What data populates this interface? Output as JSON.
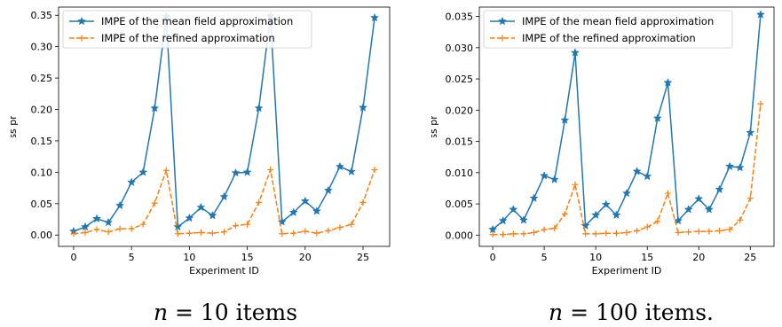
{
  "colors": {
    "mean_field": "#1f77b4",
    "refined": "#ff7f0e"
  },
  "chart_data": [
    {
      "type": "line",
      "xlabel": "Experiment ID",
      "ylabel": "IMPE (Item miss probability error",
      "caption": "n = 10 items",
      "caption_var": "n",
      "caption_rest": " = 10 items",
      "xlim": [
        -1.3,
        27.3
      ],
      "ylim": [
        -0.018,
        0.363
      ],
      "xticks": [
        0,
        5,
        10,
        15,
        20,
        25
      ],
      "xtick_labels": [
        "0",
        "5",
        "10",
        "15",
        "20",
        "25"
      ],
      "yticks": [
        0.0,
        0.05,
        0.1,
        0.15,
        0.2,
        0.25,
        0.3,
        0.35
      ],
      "ytick_labels": [
        "0.00",
        "0.05",
        "0.10",
        "0.15",
        "0.20",
        "0.25",
        "0.30",
        "0.35"
      ],
      "grid": false,
      "legend": "top-left",
      "x": [
        0,
        1,
        2,
        3,
        4,
        5,
        6,
        7,
        8,
        9,
        10,
        11,
        12,
        13,
        14,
        15,
        16,
        17,
        18,
        19,
        20,
        21,
        22,
        23,
        24,
        25,
        26
      ],
      "series": [
        {
          "name": "IMPE of the mean field approximation",
          "marker": "star",
          "style": "solid",
          "values": [
            0.006,
            0.013,
            0.026,
            0.02,
            0.047,
            0.084,
            0.1,
            0.202,
            0.348,
            0.013,
            0.027,
            0.044,
            0.031,
            0.061,
            0.099,
            0.1,
            0.202,
            0.349,
            0.021,
            0.036,
            0.054,
            0.038,
            0.071,
            0.109,
            0.101,
            0.203,
            0.346
          ]
        },
        {
          "name": "IMPE of the refined approximation",
          "marker": "plus",
          "style": "dashed",
          "values": [
            0.002,
            0.004,
            0.009,
            0.005,
            0.01,
            0.01,
            0.017,
            0.051,
            0.103,
            0.002,
            0.003,
            0.004,
            0.003,
            0.005,
            0.015,
            0.017,
            0.052,
            0.104,
            0.002,
            0.003,
            0.006,
            0.003,
            0.007,
            0.012,
            0.017,
            0.052,
            0.104
          ]
        }
      ]
    },
    {
      "type": "line",
      "xlabel": "Experiment ID",
      "ylabel": "IMPE (Item miss probability error",
      "caption": "n = 100 items.",
      "caption_var": "n",
      "caption_rest": " = 100 items.",
      "xlim": [
        -1.3,
        27.3
      ],
      "ylim": [
        -0.0018,
        0.0365
      ],
      "xticks": [
        0,
        5,
        10,
        15,
        20,
        25
      ],
      "xtick_labels": [
        "0",
        "5",
        "10",
        "15",
        "20",
        "25"
      ],
      "yticks": [
        0.0,
        0.005,
        0.01,
        0.015,
        0.02,
        0.025,
        0.03,
        0.035
      ],
      "ytick_labels": [
        "0.000",
        "0.005",
        "0.010",
        "0.015",
        "0.020",
        "0.025",
        "0.030",
        "0.035"
      ],
      "grid": false,
      "legend": "top-left",
      "x": [
        0,
        1,
        2,
        3,
        4,
        5,
        6,
        7,
        8,
        9,
        10,
        11,
        12,
        13,
        14,
        15,
        16,
        17,
        18,
        19,
        20,
        21,
        22,
        23,
        24,
        25,
        26
      ],
      "series": [
        {
          "name": "IMPE of the mean field approximation",
          "marker": "star",
          "style": "solid",
          "values": [
            0.0009,
            0.0023,
            0.0041,
            0.0024,
            0.0059,
            0.0095,
            0.0089,
            0.0184,
            0.0292,
            0.0015,
            0.0032,
            0.0049,
            0.0032,
            0.0067,
            0.0102,
            0.0094,
            0.0187,
            0.0244,
            0.0023,
            0.0041,
            0.0058,
            0.0041,
            0.0073,
            0.011,
            0.0108,
            0.0164,
            0.0353
          ]
        },
        {
          "name": "IMPE of the refined approximation",
          "marker": "plus",
          "style": "dashed",
          "values": [
            0.0001,
            0.0001,
            0.0002,
            0.0002,
            0.0004,
            0.0009,
            0.0011,
            0.0034,
            0.0081,
            0.0002,
            0.0002,
            0.0003,
            0.0003,
            0.0004,
            0.0007,
            0.0013,
            0.0022,
            0.0067,
            0.0004,
            0.0005,
            0.0006,
            0.0006,
            0.0007,
            0.0009,
            0.0024,
            0.0059,
            0.021
          ]
        }
      ]
    }
  ]
}
